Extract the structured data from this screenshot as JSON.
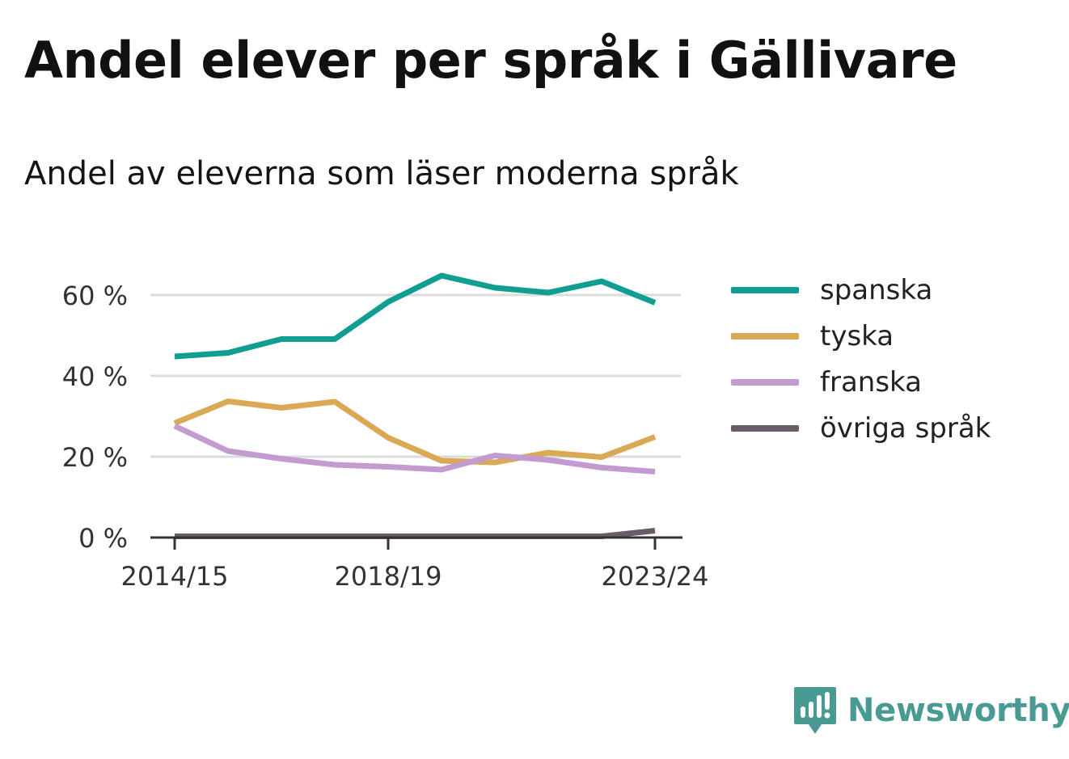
{
  "title": "Andel elever per språk i Gällivare",
  "subtitle": "Andel av eleverna som läser moderna språk",
  "brand": {
    "name": "Newsworthy",
    "icon": "newsworthy-logo-icon",
    "color": "#4a9a94"
  },
  "chart_data": {
    "type": "line",
    "title": "Andel elever per språk i Gällivare",
    "subtitle": "Andel av eleverna som läser moderna språk",
    "x": [
      "2014/15",
      "2015/16",
      "2016/17",
      "2017/18",
      "2018/19",
      "2019/20",
      "2020/21",
      "2021/22",
      "2022/23",
      "2023/24"
    ],
    "x_tick_labels": [
      "2014/15",
      "2018/19",
      "2023/24"
    ],
    "y_tick_labels": [
      "0 %",
      "20 %",
      "40 %",
      "60 %"
    ],
    "y_ticks": [
      0,
      20,
      40,
      60
    ],
    "ylim": [
      0,
      70
    ],
    "grid": true,
    "legend_position": "right",
    "series": [
      {
        "name": "spanska",
        "color": "#0f9e91",
        "values": [
          44.8,
          45.7,
          49.1,
          49.1,
          58.3,
          64.8,
          61.8,
          60.6,
          63.4,
          58.1
        ]
      },
      {
        "name": "tyska",
        "color": "#d9a955",
        "values": [
          28.3,
          33.7,
          32.1,
          33.6,
          24.7,
          19.0,
          18.6,
          21.0,
          19.9,
          24.9
        ]
      },
      {
        "name": "franska",
        "color": "#c39bd0",
        "values": [
          27.6,
          21.4,
          19.5,
          18.0,
          17.5,
          16.8,
          20.3,
          19.2,
          17.3,
          16.3
        ]
      },
      {
        "name": "övriga språk",
        "color": "#6b5b68",
        "values": [
          0.3,
          0.3,
          0.3,
          0.3,
          0.3,
          0.3,
          0.3,
          0.3,
          0.3,
          1.7
        ]
      }
    ]
  }
}
